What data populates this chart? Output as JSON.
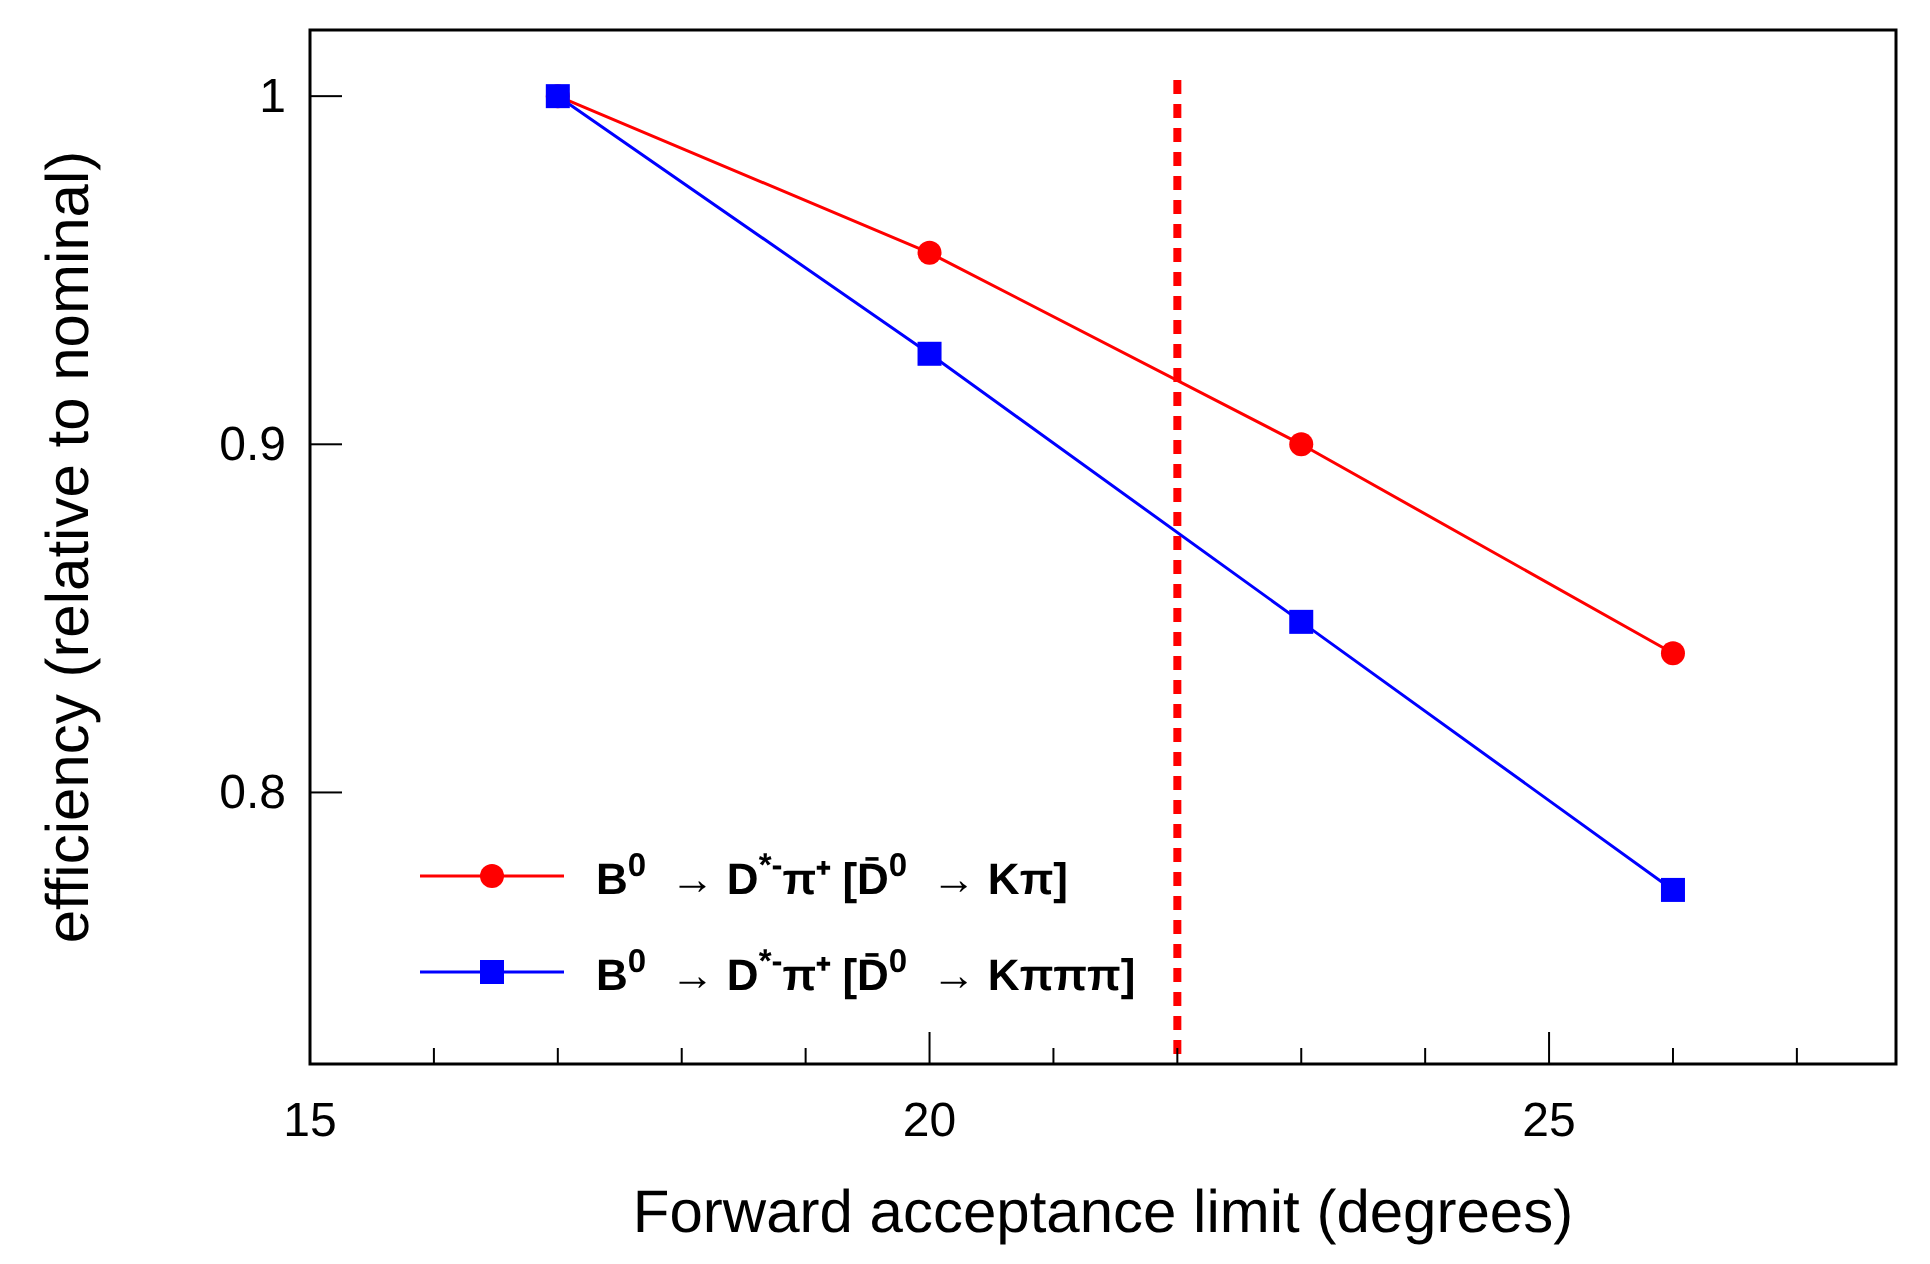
{
  "chart_data": {
    "type": "line",
    "xlabel": "Forward acceptance limit (degrees)",
    "ylabel": "efficiency (relative to nominal)",
    "x": [
      17,
      20,
      23,
      26
    ],
    "series": [
      {
        "name": "B$^{0}$  → D$^{*-}$π⁺ [D̄$^{0}$  → Kπ]",
        "color": "#ff0000",
        "values": [
          1.0,
          0.955,
          0.9,
          0.84
        ],
        "marker": "circle"
      },
      {
        "name": "B$^{0}$  → D$^{*-}$π⁺ [D̄$^{0}$  → Kπππ]",
        "color": "#0000ff",
        "values": [
          1.0,
          0.926,
          0.849,
          0.772
        ],
        "marker": "square"
      }
    ],
    "xlim": [
      15,
      27.8
    ],
    "xticks": [
      15,
      {
        "value": 16,
        "label": null
      },
      {
        "value": 17,
        "label": null
      },
      {
        "value": 18,
        "label": null
      },
      {
        "value": 19,
        "label": null
      },
      20,
      {
        "value": 21,
        "label": null
      },
      {
        "value": 22,
        "label": null
      },
      {
        "value": 23,
        "label": null
      },
      {
        "value": 24,
        "label": null
      },
      25,
      {
        "value": 26,
        "label": null
      },
      {
        "value": 27,
        "label": null
      }
    ],
    "ylim": [
      0.722,
      1.019
    ],
    "yticks": [
      0.8,
      0.9,
      1
    ],
    "ref_lines": [
      {
        "axis": "x",
        "value": 22,
        "color": "#ff0000",
        "line_style": "dashed"
      }
    ],
    "legend": "bottom left",
    "grid": false
  }
}
